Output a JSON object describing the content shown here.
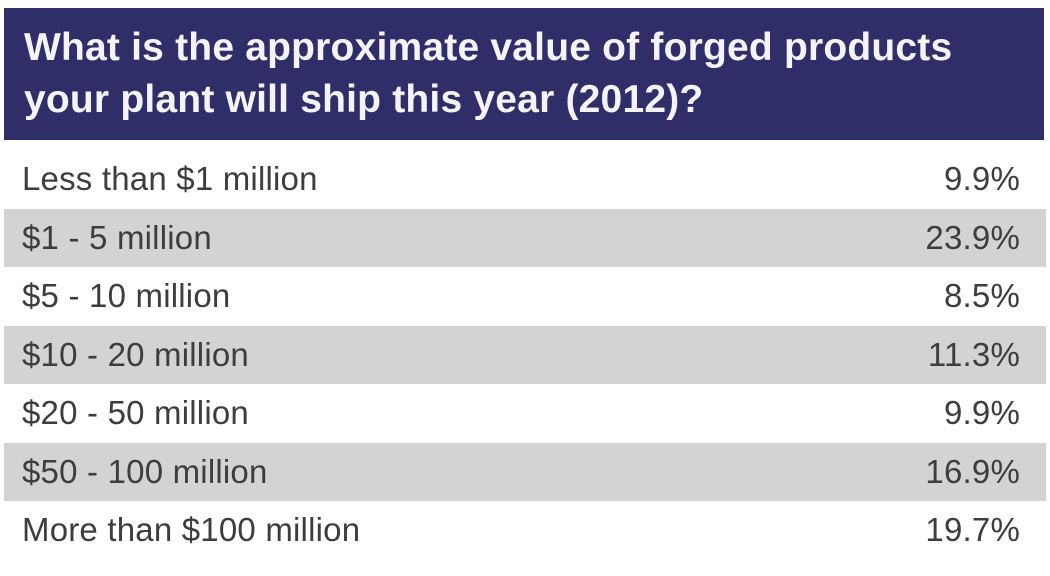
{
  "chart_data": {
    "type": "table",
    "title": "What is the approximate value of forged products your plant will ship this year (2012)?",
    "categories": [
      "Less than $1 million",
      "$1 - 5 million",
      "$5 - 10 million",
      "$10 - 20 million",
      "$20 - 50 million",
      "$50 - 100 million",
      "More than $100 million"
    ],
    "values": [
      9.9,
      23.9,
      8.5,
      11.3,
      9.9,
      16.9,
      19.7
    ],
    "value_labels": [
      "9.9%",
      "23.9%",
      "8.5%",
      "11.3%",
      "9.9%",
      "16.9%",
      "19.7%"
    ]
  },
  "colors": {
    "header_bg": "#2f2e69",
    "header_text": "#f4f4f8",
    "row_shade": "#d3d3d3",
    "row_text": "#3d3d3d"
  }
}
